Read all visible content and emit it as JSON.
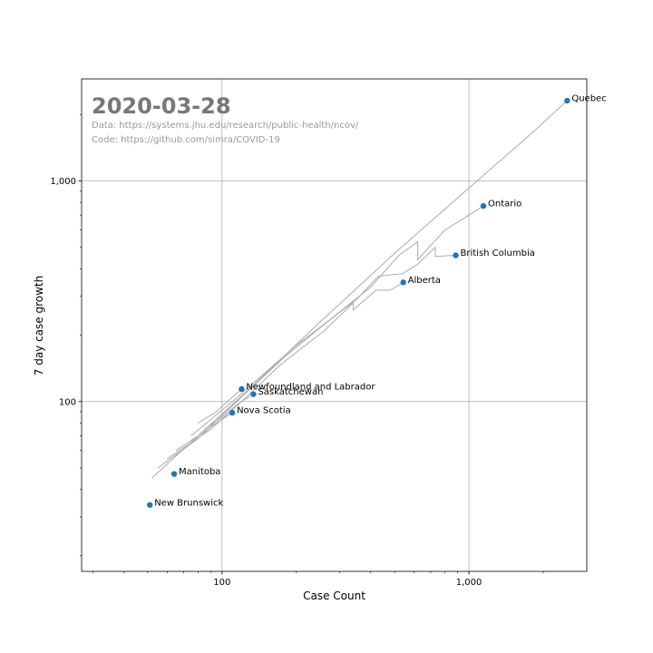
{
  "chart_data": {
    "type": "scatter",
    "title": "2020-03-28",
    "notes": [
      "Data: https://systems.jhu.edu/research/public-health/ncov/",
      "Code: https://github.com/simra/COVID-19"
    ],
    "xlabel": "Case Count",
    "ylabel": "7 day case growth",
    "xscale": "log",
    "yscale": "log",
    "xlim": [
      27,
      3000
    ],
    "ylim": [
      17,
      2900
    ],
    "xticks": [
      {
        "value": 100,
        "label": "100"
      },
      {
        "value": 1000,
        "label": "1,000"
      }
    ],
    "yticks": [
      {
        "value": 100,
        "label": "100"
      },
      {
        "value": 1000,
        "label": "1,000"
      }
    ],
    "grid": true,
    "point_color": "#1f77b4",
    "trail_color": "#aaaaaa",
    "points": [
      {
        "label": "Quebec",
        "x": 2498,
        "y": 2310
      },
      {
        "label": "Ontario",
        "x": 1144,
        "y": 770
      },
      {
        "label": "British Columbia",
        "x": 884,
        "y": 460
      },
      {
        "label": "Alberta",
        "x": 542,
        "y": 347
      },
      {
        "label": "Newfoundland and Labrador",
        "x": 120,
        "y": 114
      },
      {
        "label": "Saskatchewan",
        "x": 134,
        "y": 108
      },
      {
        "label": "Nova Scotia",
        "x": 110,
        "y": 89
      },
      {
        "label": "Manitoba",
        "x": 64,
        "y": 47
      },
      {
        "label": "New Brunswick",
        "x": 51,
        "y": 34
      }
    ],
    "trails": [
      {
        "label": "Quebec",
        "points": [
          [
            52,
            45
          ],
          [
            80,
            70
          ],
          [
            130,
            115
          ],
          [
            250,
            230
          ],
          [
            500,
            470
          ],
          [
            1000,
            930
          ],
          [
            1800,
            1650
          ],
          [
            2498,
            2310
          ]
        ]
      },
      {
        "label": "Ontario",
        "points": [
          [
            55,
            50
          ],
          [
            80,
            68
          ],
          [
            120,
            105
          ],
          [
            180,
            160
          ],
          [
            280,
            240
          ],
          [
            400,
            330
          ],
          [
            520,
            460
          ],
          [
            620,
            530
          ],
          [
            620,
            440
          ],
          [
            800,
            600
          ],
          [
            1000,
            700
          ],
          [
            1144,
            770
          ]
        ]
      },
      {
        "label": "British Columbia",
        "points": [
          [
            75,
            70
          ],
          [
            110,
            100
          ],
          [
            200,
            180
          ],
          [
            350,
            290
          ],
          [
            430,
            370
          ],
          [
            540,
            380
          ],
          [
            620,
            420
          ],
          [
            730,
            500
          ],
          [
            730,
            455
          ],
          [
            884,
            460
          ]
        ]
      },
      {
        "label": "Alberta",
        "points": [
          [
            60,
            55
          ],
          [
            90,
            75
          ],
          [
            120,
            100
          ],
          [
            170,
            145
          ],
          [
            260,
            210
          ],
          [
            340,
            280
          ],
          [
            340,
            260
          ],
          [
            420,
            320
          ],
          [
            480,
            320
          ],
          [
            542,
            347
          ]
        ]
      },
      {
        "label": "Newfoundland and Labrador",
        "points": [
          [
            80,
            80
          ],
          [
            95,
            90
          ],
          [
            105,
            100
          ],
          [
            120,
            114
          ]
        ]
      },
      {
        "label": "Saskatchewan",
        "points": [
          [
            85,
            75
          ],
          [
            100,
            85
          ],
          [
            115,
            97
          ],
          [
            134,
            108
          ]
        ]
      },
      {
        "label": "Nova Scotia",
        "points": [
          [
            65,
            60
          ],
          [
            80,
            70
          ],
          [
            95,
            80
          ],
          [
            110,
            89
          ]
        ]
      }
    ]
  }
}
